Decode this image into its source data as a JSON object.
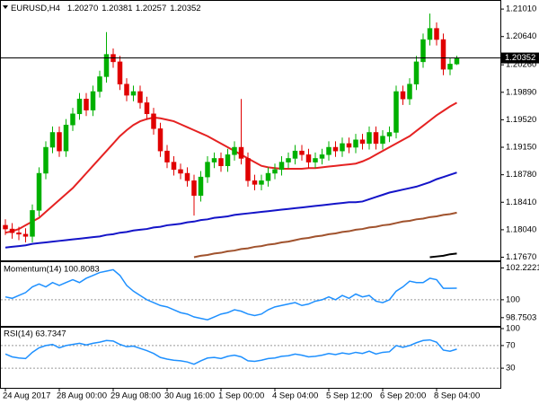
{
  "chart_data": [
    {
      "type": "candlestick",
      "title": "EURUSD,H4",
      "ohlc_labels": [
        "1.20270",
        "1.20381",
        "1.20257",
        "1.20352"
      ],
      "categories": [
        "24 Aug 2017",
        null,
        null,
        null,
        null,
        null,
        null,
        null,
        "28 Aug 00:00",
        null,
        null,
        null,
        null,
        null,
        null,
        null,
        "29 Aug 08:00",
        null,
        null,
        null,
        null,
        null,
        null,
        null,
        "30 Aug 16:00",
        null,
        null,
        null,
        null,
        null,
        null,
        null,
        "1 Sep 00:00",
        null,
        null,
        null,
        null,
        null,
        null,
        null,
        "4 Sep 04:00",
        null,
        null,
        null,
        null,
        null,
        null,
        null,
        "5 Sep 12:00",
        null,
        null,
        null,
        null,
        null,
        null,
        null,
        "6 Sep 20:00",
        null,
        null,
        null,
        null,
        null,
        null,
        null,
        "8 Sep 04:00",
        null,
        null,
        null
      ],
      "open": [
        1.181,
        1.1805,
        1.18,
        1.1798,
        1.1795,
        1.183,
        1.188,
        1.1915,
        1.1935,
        1.191,
        1.1945,
        1.196,
        1.198,
        1.1965,
        1.199,
        1.201,
        1.204,
        1.203,
        1.2,
        1.1985,
        1.199,
        1.1975,
        1.196,
        1.194,
        1.191,
        1.1895,
        1.1885,
        1.188,
        1.187,
        1.185,
        1.1875,
        1.1895,
        1.19,
        1.189,
        1.1905,
        1.1915,
        1.19,
        1.187,
        1.1865,
        1.187,
        1.188,
        1.1885,
        1.1895,
        1.19,
        1.191,
        1.1905,
        1.1895,
        1.19,
        1.1905,
        1.1915,
        1.191,
        1.192,
        1.1915,
        1.1925,
        1.192,
        1.1935,
        1.192,
        1.193,
        1.1935,
        1.199,
        1.198,
        1.2,
        1.203,
        1.206,
        1.2075,
        1.206,
        1.202,
        1.2027
      ],
      "high": [
        1.1818,
        1.1813,
        1.1808,
        1.1806,
        1.1838,
        1.1888,
        1.1923,
        1.1943,
        1.1943,
        1.1953,
        1.1968,
        1.1988,
        1.1988,
        1.1998,
        1.2018,
        1.207,
        1.2048,
        1.2038,
        1.2008,
        1.1998,
        1.1998,
        1.1983,
        1.1968,
        1.1948,
        1.1918,
        1.1903,
        1.1893,
        1.1888,
        1.1878,
        1.1883,
        1.1903,
        1.1908,
        1.1908,
        1.1913,
        1.1923,
        1.198,
        1.1908,
        1.1878,
        1.1878,
        1.1888,
        1.1893,
        1.1903,
        1.1908,
        1.1918,
        1.1918,
        1.1913,
        1.1908,
        1.1913,
        1.1923,
        1.1923,
        1.1928,
        1.1928,
        1.1933,
        1.1933,
        1.1943,
        1.1943,
        1.1938,
        1.1943,
        1.1998,
        1.1998,
        1.2008,
        1.2038,
        1.2068,
        1.2095,
        1.2083,
        1.2068,
        1.2035,
        1.20381
      ],
      "low": [
        1.1797,
        1.1792,
        1.179,
        1.1787,
        1.1787,
        1.1822,
        1.1872,
        1.1907,
        1.1902,
        1.1902,
        1.1937,
        1.1952,
        1.1957,
        1.1957,
        1.1982,
        1.2002,
        1.2022,
        1.1992,
        1.1977,
        1.1977,
        1.1967,
        1.1952,
        1.1932,
        1.1902,
        1.1887,
        1.1877,
        1.1872,
        1.1862,
        1.1823,
        1.1842,
        1.1867,
        1.1887,
        1.1882,
        1.1882,
        1.1897,
        1.1892,
        1.1862,
        1.1857,
        1.1857,
        1.1862,
        1.1872,
        1.1877,
        1.1887,
        1.1892,
        1.1897,
        1.1887,
        1.1887,
        1.1892,
        1.1897,
        1.1902,
        1.1902,
        1.1907,
        1.1907,
        1.1912,
        1.1912,
        1.1912,
        1.1912,
        1.1922,
        1.1927,
        1.1972,
        1.1972,
        1.1992,
        1.2022,
        1.2052,
        1.2052,
        1.2012,
        1.2012,
        1.20257
      ],
      "close": [
        1.1805,
        1.18,
        1.1798,
        1.1795,
        1.183,
        1.188,
        1.1915,
        1.1935,
        1.191,
        1.1945,
        1.196,
        1.198,
        1.1965,
        1.199,
        1.201,
        1.204,
        1.203,
        1.2,
        1.1985,
        1.199,
        1.1975,
        1.196,
        1.194,
        1.191,
        1.1895,
        1.1885,
        1.188,
        1.187,
        1.185,
        1.1875,
        1.1895,
        1.19,
        1.189,
        1.1905,
        1.1915,
        1.19,
        1.187,
        1.1865,
        1.187,
        1.188,
        1.1885,
        1.1895,
        1.19,
        1.191,
        1.1905,
        1.1895,
        1.19,
        1.1905,
        1.1915,
        1.191,
        1.192,
        1.1915,
        1.1925,
        1.192,
        1.1935,
        1.192,
        1.193,
        1.1935,
        1.199,
        1.198,
        1.2,
        1.203,
        1.206,
        1.2075,
        1.206,
        1.202,
        1.2027,
        1.20352
      ],
      "up_color": "#00b000",
      "down_color": "#e00000",
      "lines": [
        {
          "color": "#e52222",
          "values": [
            1.18,
            1.1802,
            1.1805,
            1.181,
            1.1815,
            1.182,
            1.1828,
            1.1836,
            1.1844,
            1.1852,
            1.186,
            1.187,
            1.188,
            1.189,
            1.19,
            1.191,
            1.192,
            1.193,
            1.1938,
            1.1945,
            1.195,
            1.1953,
            1.1955,
            1.1954,
            1.1952,
            1.195,
            1.1946,
            1.1942,
            1.1938,
            1.1934,
            1.193,
            1.1925,
            1.192,
            1.1915,
            1.191,
            1.1905,
            1.19,
            1.1895,
            1.189,
            1.1888,
            1.1887,
            1.1886,
            1.1886,
            1.1886,
            1.1886,
            1.1887,
            1.1887,
            1.1888,
            1.1889,
            1.189,
            1.1891,
            1.1892,
            1.1893,
            1.1896,
            1.19,
            1.1905,
            1.191,
            1.1915,
            1.192,
            1.1925,
            1.193,
            1.1937,
            1.1944,
            1.1951,
            1.1958,
            1.1964,
            1.197,
            1.1975
          ]
        },
        {
          "color": "#1414c8",
          "values": [
            1.178,
            1.1781,
            1.1782,
            1.1783,
            1.1785,
            1.1786,
            1.1787,
            1.1788,
            1.1789,
            1.179,
            1.1791,
            1.1792,
            1.1793,
            1.1794,
            1.1795,
            1.1797,
            1.1798,
            1.18,
            1.1801,
            1.1803,
            1.1804,
            1.1805,
            1.1807,
            1.1808,
            1.181,
            1.1811,
            1.1812,
            1.1814,
            1.1815,
            1.1817,
            1.1818,
            1.182,
            1.1821,
            1.1822,
            1.1824,
            1.1825,
            1.1826,
            1.1827,
            1.1828,
            1.1829,
            1.183,
            1.1831,
            1.1832,
            1.1833,
            1.1834,
            1.1835,
            1.1836,
            1.1837,
            1.1838,
            1.1839,
            1.184,
            1.1841,
            1.1841,
            1.1842,
            1.1845,
            1.1848,
            1.1851,
            1.1854,
            1.1856,
            1.1858,
            1.186,
            1.1862,
            1.1865,
            1.1868,
            1.1872,
            1.1875,
            1.1878,
            1.1881
          ]
        },
        {
          "color": "#a0522d",
          "values": [
            null,
            null,
            null,
            null,
            null,
            null,
            null,
            null,
            null,
            null,
            null,
            null,
            null,
            null,
            null,
            null,
            null,
            null,
            null,
            null,
            null,
            null,
            null,
            null,
            null,
            null,
            null,
            null,
            1.1767,
            1.1769,
            1.177,
            1.1772,
            1.1773,
            1.1775,
            1.1776,
            1.1778,
            1.1779,
            1.1781,
            1.1782,
            1.1784,
            1.1785,
            1.1787,
            1.1788,
            1.179,
            1.1792,
            1.1793,
            1.1795,
            1.1796,
            1.1798,
            1.1799,
            1.1801,
            1.1802,
            1.1804,
            1.1805,
            1.1807,
            1.1808,
            1.181,
            1.1811,
            1.1813,
            1.1815,
            1.1816,
            1.1818,
            1.1819,
            1.1821,
            1.1822,
            1.1824,
            1.1825,
            1.1827
          ]
        },
        {
          "color": "#000000",
          "values": [
            null,
            null,
            null,
            null,
            null,
            null,
            null,
            null,
            null,
            null,
            null,
            null,
            null,
            null,
            null,
            null,
            null,
            null,
            null,
            null,
            null,
            null,
            null,
            null,
            null,
            null,
            null,
            null,
            null,
            null,
            null,
            null,
            null,
            null,
            null,
            null,
            null,
            null,
            null,
            null,
            null,
            null,
            null,
            null,
            null,
            null,
            null,
            null,
            null,
            null,
            null,
            null,
            null,
            null,
            null,
            null,
            null,
            null,
            null,
            null,
            null,
            null,
            null,
            1.1767,
            1.1768,
            1.1769,
            1.1771,
            1.1772
          ]
        }
      ],
      "last_price": {
        "value": 1.20352,
        "label": "1.20352"
      },
      "ylim": [
        1.1764,
        1.2112
      ],
      "yticks": [
        {
          "value": 1.2101,
          "label": "1.21010"
        },
        {
          "value": 1.2064,
          "label": "1.20640"
        },
        {
          "value": 1.2026,
          "label": "1.20260"
        },
        {
          "value": 1.1989,
          "label": "1.19890"
        },
        {
          "value": 1.1952,
          "label": "1.19520"
        },
        {
          "value": 1.1915,
          "label": "1.19150"
        },
        {
          "value": 1.1878,
          "label": "1.18780"
        },
        {
          "value": 1.1841,
          "label": "1.18410"
        },
        {
          "value": 1.1804,
          "label": "1.18040"
        },
        {
          "value": 1.1767,
          "label": "1.17670"
        }
      ]
    },
    {
      "type": "line",
      "title": "Momentum(14) 100.8083",
      "color": "#1e90ff",
      "values": [
        100.2,
        100.1,
        100.3,
        100.5,
        100.9,
        101.1,
        100.9,
        101.2,
        101.0,
        101.2,
        101.4,
        101.2,
        101.5,
        101.7,
        101.9,
        102.0,
        102.1,
        101.7,
        101.0,
        100.6,
        100.3,
        100.0,
        99.8,
        99.6,
        99.5,
        99.3,
        99.1,
        99.0,
        98.8,
        98.7,
        98.6,
        98.8,
        99.0,
        99.1,
        99.3,
        99.2,
        99.0,
        98.9,
        99.0,
        99.3,
        99.5,
        99.6,
        99.7,
        99.8,
        99.6,
        99.7,
        99.9,
        100.0,
        100.2,
        100.0,
        100.3,
        100.1,
        100.4,
        100.2,
        100.3,
        99.9,
        99.8,
        100.0,
        100.6,
        100.9,
        101.3,
        101.2,
        101.2,
        101.5,
        101.4,
        100.8,
        100.8,
        100.8083
      ],
      "levels": [
        100
      ],
      "ylim": [
        98.3,
        102.5
      ],
      "yticks": [
        102.2221,
        100,
        98.7503
      ]
    },
    {
      "type": "line",
      "title": "RSI(14) 63.7347",
      "color": "#1e90ff",
      "values": [
        55,
        50,
        48,
        47,
        58,
        66,
        70,
        72,
        66,
        70,
        72,
        74,
        71,
        74,
        76,
        79,
        78,
        72,
        68,
        69,
        65,
        61,
        56,
        49,
        46,
        44,
        43,
        41,
        37,
        43,
        48,
        49,
        47,
        51,
        53,
        50,
        43,
        42,
        44,
        47,
        48,
        51,
        52,
        55,
        53,
        50,
        51,
        53,
        56,
        54,
        57,
        55,
        58,
        56,
        60,
        55,
        58,
        59,
        70,
        67,
        70,
        75,
        79,
        80,
        76,
        62,
        60,
        63.7347
      ],
      "levels": [
        70,
        30
      ],
      "ylim": [
        0,
        100
      ],
      "yticks": [
        100,
        70,
        30
      ]
    }
  ]
}
